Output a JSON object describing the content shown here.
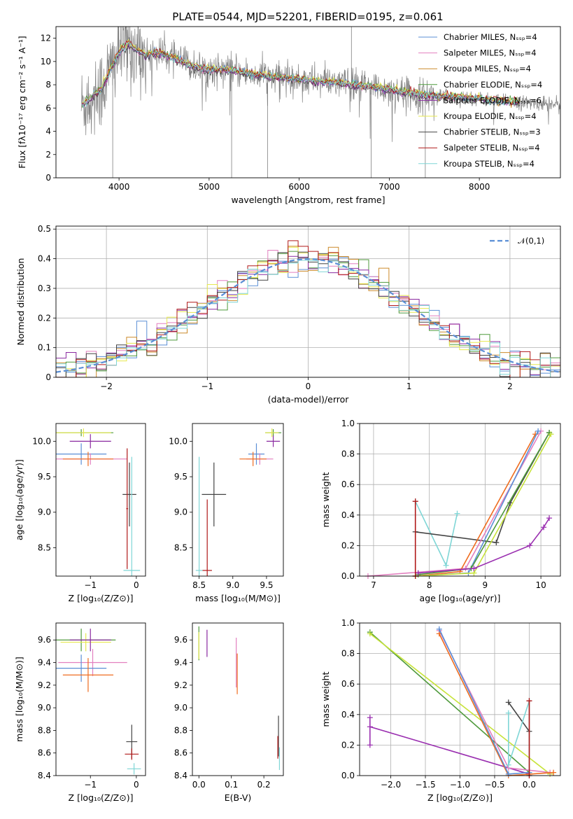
{
  "colors": {
    "chabrier_miles": "#5b8fd6",
    "salpeter_miles": "#e27fbf",
    "kroupa_miles": "#cc8a2a",
    "chabrier_elodie": "#4f9a3c",
    "salpeter_elodie": "#8a2aa0",
    "kroupa_elodie": "#e7e84f",
    "chabrier_stelib": "#444444",
    "salpeter_stelib": "#b01818",
    "kroupa_stelib": "#7fd6d6",
    "data": "#808080",
    "normal": "#5b8fd6",
    "orange": "#ef6c1f",
    "purple": "#9a2fb0",
    "lime": "#c7e33a"
  },
  "chart_data": [
    {
      "type": "line",
      "title": "PLATE=0544, MJD=52201, FIBERID=0195, z=0.061",
      "xlabel": "wavelength [Angstrom, rest frame]",
      "ylabel": "Flux [fλ10⁻¹⁷ erg cm⁻² s⁻¹ A⁻¹]",
      "xlim": [
        3300,
        8900
      ],
      "ylim": [
        0,
        13
      ],
      "xticks": [
        4000,
        5000,
        6000,
        7000,
        8000
      ],
      "yticks": [
        0,
        2,
        4,
        6,
        8,
        10,
        12
      ],
      "legend_position": "upper right",
      "continuum": {
        "wavelength": [
          3600,
          3700,
          3800,
          3900,
          4000,
          4100,
          4200,
          4300,
          4400,
          4500,
          4600,
          4700,
          4800,
          4900,
          5000,
          5200,
          5400,
          5600,
          5800,
          6000,
          6200,
          6400,
          6600,
          6800,
          7000,
          7200,
          7400,
          7600,
          7800,
          8000,
          8200,
          8400,
          8600
        ],
        "flux": [
          6.3,
          7.0,
          7.6,
          9.2,
          10.8,
          11.5,
          11.0,
          10.5,
          10.8,
          10.6,
          10.3,
          10.0,
          9.6,
          9.4,
          9.3,
          9.3,
          9.0,
          8.8,
          8.6,
          8.5,
          8.3,
          8.2,
          8.0,
          7.8,
          7.6,
          7.3,
          7.1,
          7.0,
          6.9,
          6.8,
          6.6,
          6.5,
          6.4
        ]
      },
      "series": [
        {
          "name": "Chabrier MILES, Nₛₛₚ=4",
          "color": "#5b8fd6",
          "offset": 0.05
        },
        {
          "name": "Salpeter MILES, Nₛₛₚ=4",
          "color": "#e27fbf",
          "offset": -0.05
        },
        {
          "name": "Kroupa MILES, Nₛₛₚ=4",
          "color": "#cc8a2a",
          "offset": 0.0
        },
        {
          "name": "Chabrier ELODIE, Nₛₛₚ=4",
          "color": "#4f9a3c",
          "offset": 0.1
        },
        {
          "name": "Salpeter ELODIE, Nₛₛₚ=6",
          "color": "#8a2aa0",
          "offset": -0.1
        },
        {
          "name": "Kroupa ELODIE, Nₛₛₚ=4",
          "color": "#e7e84f",
          "offset": 0.15
        },
        {
          "name": "Chabrier STELIB, Nₛₛₚ=3",
          "color": "#444444",
          "offset": -0.15
        },
        {
          "name": "Salpeter STELIB, Nₛₛₚ=4",
          "color": "#b01818",
          "offset": 0.08
        },
        {
          "name": "Kroupa STELIB, Nₛₛₚ=4",
          "color": "#7fd6d6",
          "offset": 0.02
        }
      ]
    },
    {
      "type": "line",
      "xlabel": "(data-model)/error",
      "ylabel": "Normed distribution",
      "xlim": [
        -2.5,
        2.5
      ],
      "ylim": [
        0,
        0.51
      ],
      "xticks": [
        -2,
        -1,
        0,
        1,
        2
      ],
      "yticks": [
        0.0,
        0.1,
        0.2,
        0.3,
        0.4,
        0.5
      ],
      "grid": true,
      "legend": "𝒩(0,1)",
      "legend_position": "upper right",
      "bin_edges_start": -2.5,
      "bin_width": 0.1,
      "normal_curve": {
        "mean": 0,
        "sigma": 1
      }
    },
    {
      "type": "scatter",
      "xlabel": "Z [log₁₀(Z/Z⊙)]",
      "ylabel": "age  [log₁₀(age/yr)]",
      "xlim": [
        -1.75,
        0.2
      ],
      "ylim": [
        8.1,
        10.25
      ],
      "xticks": [
        -1,
        0
      ],
      "yticks": [
        8.5,
        9.0,
        9.5,
        10.0
      ],
      "points": [
        {
          "x": -1.2,
          "y": 10.12,
          "xerr": 0.7,
          "yerr": 0.05,
          "color": "#4f9a3c"
        },
        {
          "x": -1.15,
          "y": 10.12,
          "xerr": 0.6,
          "yerr": 0.06,
          "color": "#e7e84f"
        },
        {
          "x": -1.0,
          "y": 10.0,
          "xerr": 0.45,
          "yerr": 0.1,
          "color": "#8a2aa0"
        },
        {
          "x": -1.2,
          "y": 9.82,
          "xerr": 0.55,
          "yerr": 0.15,
          "color": "#5b8fd6"
        },
        {
          "x": -1.0,
          "y": 9.75,
          "xerr": 0.8,
          "yerr": 0.08,
          "color": "#e27fbf"
        },
        {
          "x": -1.05,
          "y": 9.75,
          "xerr": 0.55,
          "yerr": 0.1,
          "color": "#ef6c1f"
        },
        {
          "x": -0.15,
          "y": 9.25,
          "xerr": 0.15,
          "yerr": 0.45,
          "color": "#444444"
        },
        {
          "x": -0.2,
          "y": 9.05,
          "xerr": 0.02,
          "yerr": 0.85,
          "color": "#b01818"
        },
        {
          "x": -0.1,
          "y": 8.18,
          "xerr": 0.18,
          "yerr": 1.6,
          "color": "#7fd6d6"
        }
      ]
    },
    {
      "type": "scatter",
      "xlabel": "mass [log₁₀(M/M⊙)]",
      "xlim": [
        8.4,
        9.75
      ],
      "ylim": [
        8.1,
        10.25
      ],
      "xticks": [
        8.5,
        9.0,
        9.5
      ],
      "yticks": [
        8.5,
        9.0,
        9.5,
        10.0
      ],
      "points": [
        {
          "x": 9.6,
          "y": 10.12,
          "xerr": 0.12,
          "yerr": 0.05,
          "color": "#4f9a3c"
        },
        {
          "x": 9.58,
          "y": 10.12,
          "xerr": 0.1,
          "yerr": 0.06,
          "color": "#e7e84f"
        },
        {
          "x": 9.6,
          "y": 10.0,
          "xerr": 0.1,
          "yerr": 0.08,
          "color": "#8a2aa0"
        },
        {
          "x": 9.35,
          "y": 9.82,
          "xerr": 0.12,
          "yerr": 0.15,
          "color": "#5b8fd6"
        },
        {
          "x": 9.4,
          "y": 9.75,
          "xerr": 0.2,
          "yerr": 0.08,
          "color": "#e27fbf"
        },
        {
          "x": 9.3,
          "y": 9.75,
          "xerr": 0.2,
          "yerr": 0.1,
          "color": "#ef6c1f"
        },
        {
          "x": 8.72,
          "y": 9.25,
          "xerr": 0.18,
          "yerr": 0.45,
          "color": "#444444"
        },
        {
          "x": 8.62,
          "y": 8.18,
          "xerr": 0.07,
          "yerr": 1.0,
          "color": "#b01818"
        },
        {
          "x": 8.5,
          "y": 8.18,
          "xerr": 0.05,
          "yerr": 1.6,
          "color": "#7fd6d6"
        }
      ]
    },
    {
      "type": "line",
      "xlabel": "age  [log₁₀(age/yr)]",
      "ylabel": "mass weight",
      "xlim": [
        6.75,
        10.35
      ],
      "ylim": [
        0,
        1.0
      ],
      "xticks": [
        7,
        8,
        9,
        10
      ],
      "yticks": [
        0.0,
        0.2,
        0.4,
        0.6,
        0.8,
        1.0
      ],
      "grid": true,
      "series": [
        {
          "color": "#7fd6d6",
          "x": [
            7.75,
            8.3,
            8.5
          ],
          "y": [
            0.49,
            0.07,
            0.41
          ]
        },
        {
          "color": "#444444",
          "x": [
            7.75,
            9.2,
            9.45,
            10.15
          ],
          "y": [
            0.29,
            0.22,
            0.48,
            0.94
          ]
        },
        {
          "color": "#e27fbf",
          "x": [
            6.9,
            8.65,
            10.0
          ],
          "y": [
            0.0,
            0.05,
            0.95
          ]
        },
        {
          "color": "#ef6c1f",
          "x": [
            7.75,
            8.55,
            9.9
          ],
          "y": [
            0.0,
            0.03,
            0.93
          ]
        },
        {
          "color": "#5b8fd6",
          "x": [
            7.75,
            8.7,
            9.95
          ],
          "y": [
            0.0,
            0.02,
            0.95
          ]
        },
        {
          "color": "#4f9a3c",
          "x": [
            7.8,
            8.75,
            10.15
          ],
          "y": [
            0.01,
            0.05,
            0.94
          ]
        },
        {
          "color": "#c7e33a",
          "x": [
            7.75,
            8.8,
            10.18
          ],
          "y": [
            0.0,
            0.02,
            0.93
          ]
        },
        {
          "color": "#9a2fb0",
          "x": [
            7.8,
            8.8,
            9.8,
            10.05,
            10.15
          ],
          "y": [
            0.02,
            0.05,
            0.2,
            0.32,
            0.38
          ]
        },
        {
          "color": "#b01818",
          "x": [
            7.75,
            7.75
          ],
          "y": [
            0.0,
            0.49
          ]
        }
      ]
    },
    {
      "type": "scatter",
      "xlabel": "Z [log₁₀(Z/Z⊙)]",
      "ylabel": "mass [log₁₀(M/M⊙)]",
      "xlim": [
        -1.75,
        0.2
      ],
      "ylim": [
        8.4,
        9.75
      ],
      "xticks": [
        -1,
        0
      ],
      "yticks": [
        8.4,
        8.6,
        8.8,
        9.0,
        9.2,
        9.4,
        9.6
      ],
      "points": [
        {
          "x": -1.2,
          "y": 9.6,
          "xerr": 0.75,
          "yerr": 0.1,
          "color": "#4f9a3c"
        },
        {
          "x": -1.1,
          "y": 9.58,
          "xerr": 0.55,
          "yerr": 0.08,
          "color": "#e7e84f"
        },
        {
          "x": -1.0,
          "y": 9.6,
          "xerr": 0.45,
          "yerr": 0.1,
          "color": "#8a2aa0"
        },
        {
          "x": -0.95,
          "y": 9.4,
          "xerr": 0.75,
          "yerr": 0.12,
          "color": "#e27fbf"
        },
        {
          "x": -1.2,
          "y": 9.35,
          "xerr": 0.55,
          "yerr": 0.12,
          "color": "#5b8fd6"
        },
        {
          "x": -1.05,
          "y": 9.29,
          "xerr": 0.55,
          "yerr": 0.15,
          "color": "#ef6c1f"
        },
        {
          "x": -0.1,
          "y": 8.7,
          "xerr": 0.12,
          "yerr": 0.15,
          "color": "#444444"
        },
        {
          "x": -0.1,
          "y": 8.59,
          "xerr": 0.15,
          "yerr": 0.05,
          "color": "#b01818"
        },
        {
          "x": -0.05,
          "y": 8.46,
          "xerr": 0.15,
          "yerr": 0.05,
          "color": "#7fd6d6"
        }
      ]
    },
    {
      "type": "scatter",
      "xlabel": "E(B-V)",
      "xlim": [
        -0.02,
        0.26
      ],
      "ylim": [
        8.4,
        9.75
      ],
      "xticks": [
        0.0,
        0.1,
        0.2
      ],
      "yticks": [
        8.4,
        8.6,
        8.8,
        9.0,
        9.2,
        9.4,
        9.6
      ],
      "points": [
        {
          "x": 0.0,
          "y": 9.57,
          "xerr": 0,
          "yerr": 0.15,
          "color": "#4f9a3c"
        },
        {
          "x": 0.0,
          "y": 9.55,
          "xerr": 0,
          "yerr": 0.12,
          "color": "#e7e84f"
        },
        {
          "x": 0.025,
          "y": 9.57,
          "xerr": 0,
          "yerr": 0.12,
          "color": "#8a2aa0"
        },
        {
          "x": 0.115,
          "y": 9.4,
          "xerr": 0,
          "yerr": 0.22,
          "color": "#e27fbf"
        },
        {
          "x": 0.118,
          "y": 9.3,
          "xerr": 0,
          "yerr": 0.18,
          "color": "#ef6c1f"
        },
        {
          "x": 0.245,
          "y": 8.75,
          "xerr": 0,
          "yerr": 0.18,
          "color": "#444444"
        },
        {
          "x": 0.243,
          "y": 8.65,
          "xerr": 0,
          "yerr": 0.1,
          "color": "#b01818"
        },
        {
          "x": 0.248,
          "y": 8.55,
          "xerr": 0,
          "yerr": 0.1,
          "color": "#7fd6d6"
        }
      ]
    },
    {
      "type": "line",
      "xlabel": "Z [log₁₀(Z/Z⊙)]",
      "ylabel": "mass weight",
      "xlim": [
        -2.45,
        0.45
      ],
      "ylim": [
        0,
        1.0
      ],
      "xticks": [
        -2.0,
        -1.5,
        -1.0,
        -0.5,
        0.0
      ],
      "yticks": [
        0.0,
        0.2,
        0.4,
        0.6,
        0.8,
        1.0
      ],
      "grid": true,
      "series": [
        {
          "color": "#4f9a3c",
          "x": [
            -2.3,
            0.0
          ],
          "y": [
            0.94,
            0.02
          ]
        },
        {
          "color": "#c7e33a",
          "x": [
            -2.3,
            0.3
          ],
          "y": [
            0.93,
            0.01
          ]
        },
        {
          "color": "#9a2fb0",
          "x": [
            -2.3,
            -2.3,
            -2.3,
            0.0
          ],
          "y": [
            0.38,
            0.2,
            0.32,
            0.01
          ]
        },
        {
          "color": "#e27fbf",
          "x": [
            -1.3,
            -0.3,
            0.3
          ],
          "y": [
            0.95,
            0.05,
            0.02
          ]
        },
        {
          "color": "#ef6c1f",
          "x": [
            -1.3,
            -0.3,
            0.35
          ],
          "y": [
            0.93,
            0.0,
            0.02
          ]
        },
        {
          "color": "#5b8fd6",
          "x": [
            -1.3,
            -0.3,
            0.0
          ],
          "y": [
            0.96,
            0.01,
            0.02
          ]
        },
        {
          "color": "#444444",
          "x": [
            -0.3,
            0.0
          ],
          "y": [
            0.48,
            0.29
          ]
        },
        {
          "color": "#7fd6d6",
          "x": [
            -0.3,
            -0.3,
            0.0,
            0.0
          ],
          "y": [
            0.41,
            0.07,
            0.49,
            0.0
          ]
        },
        {
          "color": "#b01818",
          "x": [
            0.0,
            0.0
          ],
          "y": [
            0.0,
            0.49
          ]
        }
      ]
    }
  ]
}
